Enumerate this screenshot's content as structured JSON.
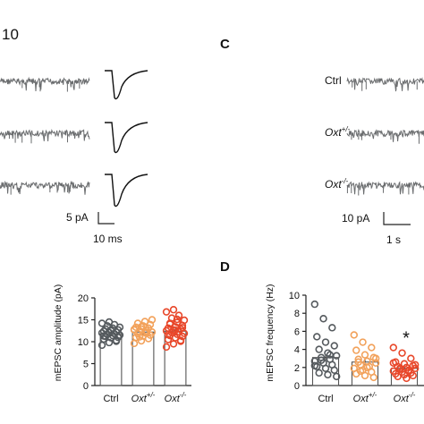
{
  "panels": {
    "top_left_fragment": "10",
    "c": "C",
    "d": "D"
  },
  "scale_bars": {
    "left_current": "5 pA",
    "left_time": "10 ms",
    "right_current": "10 pA",
    "right_time": "1 s"
  },
  "condition_labels": [
    {
      "base": "Ctrl",
      "sup": ""
    },
    {
      "base": "Oxt",
      "sup": "+/-"
    },
    {
      "base": "Oxt",
      "sup": "-/-"
    }
  ],
  "colors": {
    "trace": "#6a6c6e",
    "ctrl": "#555a5e",
    "het": "#f2a15a",
    "ko": "#e8472a",
    "significance": "#111111"
  },
  "chart_data": [
    {
      "type": "bar",
      "title": "",
      "xlabel": "",
      "ylabel": "mEPSC amplitude (pA)",
      "ylim": [
        0,
        20
      ],
      "yticks": [
        "0",
        "5",
        "10",
        "15",
        "20"
      ],
      "categories": [
        "Ctrl",
        "Oxt+/-",
        "Oxt-/-"
      ],
      "category_labels": [
        {
          "base": "Ctrl",
          "sup": ""
        },
        {
          "base": "Oxt",
          "sup": "+/-"
        },
        {
          "base": "Oxt",
          "sup": "-/-"
        }
      ],
      "values": [
        11.8,
        12.2,
        12.4
      ],
      "points": [
        [
          9.2,
          9.8,
          10.3,
          10.6,
          10.9,
          11.0,
          11.2,
          11.4,
          11.5,
          11.7,
          11.8,
          12.0,
          12.1,
          12.2,
          12.4,
          12.5,
          12.7,
          12.9,
          13.1,
          13.3,
          13.6,
          13.9,
          14.2,
          14.5,
          10.1,
          11.3,
          12.6
        ],
        [
          9.6,
          10.2,
          10.7,
          11.0,
          11.3,
          11.5,
          11.8,
          12.0,
          12.2,
          12.3,
          12.5,
          12.7,
          12.9,
          13.1,
          13.3,
          13.6,
          13.9,
          14.2,
          14.6,
          15.0,
          11.1,
          12.1,
          12.8,
          13.4
        ],
        [
          8.8,
          9.5,
          10.1,
          10.5,
          10.9,
          11.2,
          11.4,
          11.7,
          11.9,
          12.1,
          12.3,
          12.5,
          12.7,
          12.9,
          13.1,
          13.4,
          13.7,
          14.0,
          14.4,
          14.9,
          15.4,
          16.0,
          16.8,
          17.3,
          10.3,
          11.6,
          12.6,
          13.2,
          14.2,
          15.1
        ]
      ]
    },
    {
      "type": "bar",
      "title": "",
      "xlabel": "",
      "ylabel": "mEPSC frequency (Hz)",
      "ylim": [
        0,
        10
      ],
      "yticks": [
        "0",
        "2",
        "4",
        "6",
        "8",
        "10"
      ],
      "categories": [
        "Ctrl",
        "Oxt+/-",
        "Oxt-/-"
      ],
      "category_labels": [
        {
          "base": "Ctrl",
          "sup": ""
        },
        {
          "base": "Oxt",
          "sup": "+/-"
        },
        {
          "base": "Oxt",
          "sup": "-/-"
        }
      ],
      "values": [
        3.1,
        2.6,
        1.9
      ],
      "significance": [
        {
          "category": "Oxt-/-",
          "label": "*"
        }
      ],
      "points": [
        [
          9.0,
          7.4,
          6.4,
          5.4,
          4.8,
          4.4,
          4.0,
          3.6,
          3.3,
          3.1,
          2.9,
          2.7,
          2.5,
          2.3,
          2.1,
          1.9,
          1.7,
          1.4,
          1.2,
          1.0,
          2.8,
          3.4,
          2.2
        ],
        [
          5.6,
          4.8,
          4.2,
          3.9,
          3.4,
          3.1,
          2.9,
          2.7,
          2.5,
          2.3,
          2.1,
          1.9,
          1.7,
          1.5,
          1.3,
          1.1,
          0.9,
          2.6,
          2.0,
          3.0,
          1.6
        ],
        [
          4.2,
          3.6,
          3.0,
          2.6,
          2.4,
          2.2,
          2.1,
          2.0,
          1.9,
          1.8,
          1.7,
          1.6,
          1.5,
          1.4,
          1.3,
          1.2,
          1.1,
          1.0,
          0.8,
          2.3,
          1.9,
          1.6,
          2.5
        ]
      ]
    }
  ]
}
